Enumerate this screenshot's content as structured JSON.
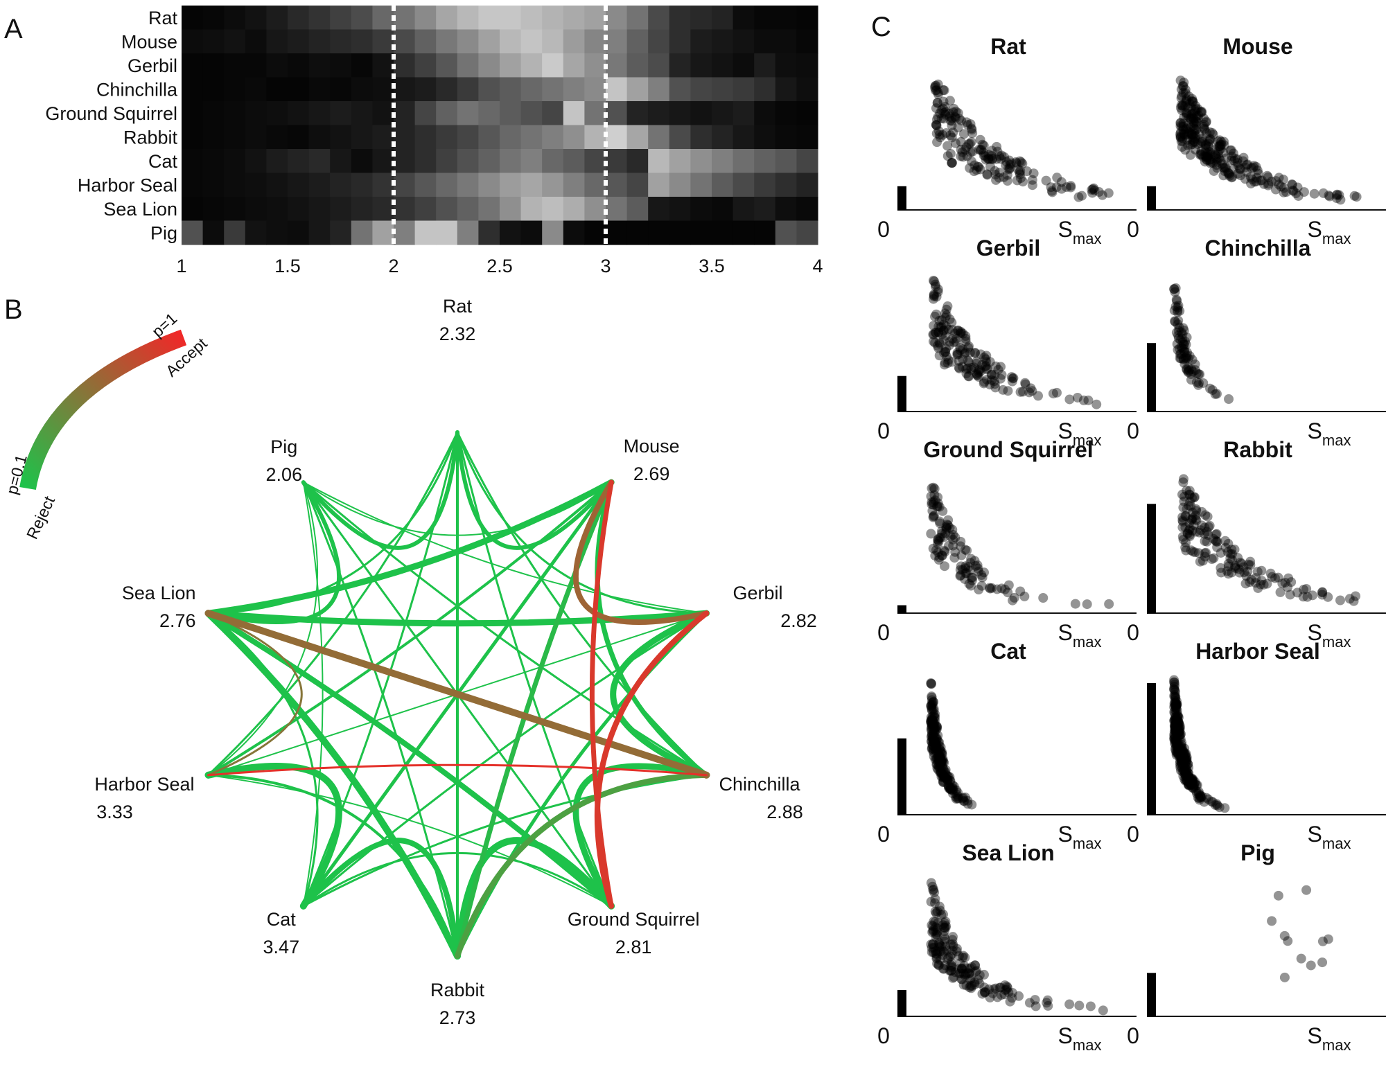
{
  "panels": {
    "a": "A",
    "b": "B",
    "c": "C"
  },
  "chart_data": [
    {
      "id": "heatmap",
      "type": "heatmap",
      "rows": [
        "Rat",
        "Mouse",
        "Gerbil",
        "Chinchilla",
        "Ground Squirrel",
        "Rabbit",
        "Cat",
        "Harbor Seal",
        "Sea Lion",
        "Pig"
      ],
      "x_ticks": [
        "1",
        "1.5",
        "2",
        "2.5",
        "3",
        "3.5",
        "4"
      ],
      "xlim": [
        1,
        4
      ],
      "dashed_lines_x": [
        2,
        3
      ],
      "bins_per_row": 30,
      "values": [
        [
          0.02,
          0.03,
          0.05,
          0.08,
          0.12,
          0.18,
          0.22,
          0.28,
          0.33,
          0.45,
          0.5,
          0.6,
          0.72,
          0.8,
          0.86,
          0.86,
          0.82,
          0.78,
          0.74,
          0.7,
          0.6,
          0.5,
          0.32,
          0.2,
          0.18,
          0.15,
          0.05,
          0.03,
          0.03,
          0.02
        ],
        [
          0.05,
          0.06,
          0.08,
          0.05,
          0.1,
          0.12,
          0.15,
          0.18,
          0.2,
          0.25,
          0.32,
          0.42,
          0.52,
          0.6,
          0.7,
          0.8,
          0.85,
          0.8,
          0.68,
          0.58,
          0.55,
          0.42,
          0.3,
          0.2,
          0.12,
          0.1,
          0.08,
          0.05,
          0.05,
          0.03
        ],
        [
          0.02,
          0.02,
          0.03,
          0.03,
          0.05,
          0.04,
          0.06,
          0.05,
          0.03,
          0.08,
          0.2,
          0.28,
          0.38,
          0.5,
          0.6,
          0.7,
          0.78,
          0.88,
          0.72,
          0.62,
          0.52,
          0.4,
          0.33,
          0.15,
          0.1,
          0.08,
          0.05,
          0.12,
          0.06,
          0.05
        ],
        [
          0.02,
          0.02,
          0.03,
          0.04,
          0.02,
          0.02,
          0.04,
          0.03,
          0.05,
          0.06,
          0.1,
          0.12,
          0.18,
          0.25,
          0.35,
          0.4,
          0.45,
          0.5,
          0.55,
          0.6,
          0.85,
          0.7,
          0.55,
          0.35,
          0.3,
          0.28,
          0.25,
          0.2,
          0.1,
          0.06
        ],
        [
          0.02,
          0.03,
          0.04,
          0.05,
          0.06,
          0.08,
          0.1,
          0.12,
          0.1,
          0.08,
          0.15,
          0.3,
          0.42,
          0.5,
          0.45,
          0.4,
          0.35,
          0.3,
          0.85,
          0.5,
          0.35,
          0.15,
          0.12,
          0.1,
          0.08,
          0.1,
          0.12,
          0.05,
          0.03,
          0.02
        ],
        [
          0.02,
          0.03,
          0.04,
          0.05,
          0.04,
          0.03,
          0.06,
          0.08,
          0.1,
          0.12,
          0.15,
          0.2,
          0.25,
          0.3,
          0.38,
          0.45,
          0.5,
          0.55,
          0.62,
          0.78,
          0.9,
          0.72,
          0.5,
          0.32,
          0.2,
          0.15,
          0.1,
          0.06,
          0.04,
          0.03
        ],
        [
          0.03,
          0.04,
          0.05,
          0.08,
          0.12,
          0.15,
          0.18,
          0.1,
          0.05,
          0.1,
          0.15,
          0.2,
          0.28,
          0.35,
          0.42,
          0.5,
          0.55,
          0.45,
          0.4,
          0.3,
          0.25,
          0.18,
          0.8,
          0.7,
          0.62,
          0.55,
          0.48,
          0.42,
          0.38,
          0.3
        ],
        [
          0.03,
          0.04,
          0.05,
          0.06,
          0.08,
          0.1,
          0.12,
          0.15,
          0.18,
          0.22,
          0.3,
          0.38,
          0.45,
          0.52,
          0.6,
          0.68,
          0.72,
          0.65,
          0.55,
          0.45,
          0.38,
          0.3,
          0.7,
          0.6,
          0.5,
          0.4,
          0.32,
          0.25,
          0.2,
          0.15
        ],
        [
          0.02,
          0.03,
          0.04,
          0.05,
          0.06,
          0.08,
          0.1,
          0.12,
          0.15,
          0.18,
          0.22,
          0.28,
          0.35,
          0.42,
          0.5,
          0.62,
          0.78,
          0.82,
          0.75,
          0.62,
          0.5,
          0.4,
          0.1,
          0.08,
          0.05,
          0.04,
          0.1,
          0.12,
          0.06,
          0.04
        ],
        [
          0.35,
          0.05,
          0.25,
          0.08,
          0.06,
          0.05,
          0.1,
          0.15,
          0.5,
          0.7,
          0.55,
          0.85,
          0.85,
          0.55,
          0.2,
          0.08,
          0.05,
          0.6,
          0.05,
          0.02,
          0.02,
          0.02,
          0.02,
          0.02,
          0.02,
          0.02,
          0.02,
          0.02,
          0.35,
          0.3
        ]
      ]
    },
    {
      "id": "network",
      "type": "network",
      "nodes": [
        {
          "name": "Rat",
          "value": "2.32"
        },
        {
          "name": "Mouse",
          "value": "2.69"
        },
        {
          "name": "Gerbil",
          "value": "2.82"
        },
        {
          "name": "Chinchilla",
          "value": "2.88"
        },
        {
          "name": "Ground Squirrel",
          "value": "2.81"
        },
        {
          "name": "Rabbit",
          "value": "2.73"
        },
        {
          "name": "Cat",
          "value": "3.47"
        },
        {
          "name": "Harbor Seal",
          "value": "3.33"
        },
        {
          "name": "Sea Lion",
          "value": "2.76"
        },
        {
          "name": "Pig",
          "value": "2.06"
        }
      ],
      "legend": {
        "high": "p=1",
        "low": "p=0.1",
        "accept": "Accept",
        "reject": "Reject",
        "colors": {
          "reject": "#1ec24a",
          "accept": "#f02828"
        }
      },
      "edges": [
        {
          "a": "Rat",
          "b": "Mouse",
          "p": 0.1,
          "w": 6
        },
        {
          "a": "Rat",
          "b": "Gerbil",
          "p": 0.1,
          "w": 3
        },
        {
          "a": "Rat",
          "b": "Chinchilla",
          "p": 0.1,
          "w": 3
        },
        {
          "a": "Rat",
          "b": "Ground Squirrel",
          "p": 0.1,
          "w": 3
        },
        {
          "a": "Rat",
          "b": "Rabbit",
          "p": 0.1,
          "w": 4
        },
        {
          "a": "Rat",
          "b": "Cat",
          "p": 0.1,
          "w": 3
        },
        {
          "a": "Rat",
          "b": "Harbor Seal",
          "p": 0.1,
          "w": 3
        },
        {
          "a": "Rat",
          "b": "Sea Lion",
          "p": 0.1,
          "w": 3
        },
        {
          "a": "Rat",
          "b": "Pig",
          "p": 0.1,
          "w": 6
        },
        {
          "a": "Mouse",
          "b": "Gerbil",
          "p": 0.65,
          "w": 8
        },
        {
          "a": "Mouse",
          "b": "Chinchilla",
          "p": 0.1,
          "w": 7
        },
        {
          "a": "Mouse",
          "b": "Ground Squirrel",
          "p": 0.9,
          "w": 7
        },
        {
          "a": "Mouse",
          "b": "Rabbit",
          "p": 0.15,
          "w": 7
        },
        {
          "a": "Mouse",
          "b": "Cat",
          "p": 0.1,
          "w": 5
        },
        {
          "a": "Mouse",
          "b": "Harbor Seal",
          "p": 0.1,
          "w": 4
        },
        {
          "a": "Mouse",
          "b": "Sea Lion",
          "p": 0.1,
          "w": 9
        },
        {
          "a": "Mouse",
          "b": "Pig",
          "p": 0.1,
          "w": 2
        },
        {
          "a": "Gerbil",
          "b": "Chinchilla",
          "p": 0.1,
          "w": 9
        },
        {
          "a": "Gerbil",
          "b": "Ground Squirrel",
          "p": 0.9,
          "w": 8
        },
        {
          "a": "Gerbil",
          "b": "Rabbit",
          "p": 0.1,
          "w": 5
        },
        {
          "a": "Gerbil",
          "b": "Cat",
          "p": 0.1,
          "w": 3
        },
        {
          "a": "Gerbil",
          "b": "Harbor Seal",
          "p": 0.1,
          "w": 2
        },
        {
          "a": "Gerbil",
          "b": "Sea Lion",
          "p": 0.1,
          "w": 9
        },
        {
          "a": "Gerbil",
          "b": "Pig",
          "p": 0.1,
          "w": 2
        },
        {
          "a": "Chinchilla",
          "b": "Ground Squirrel",
          "p": 0.1,
          "w": 9
        },
        {
          "a": "Chinchilla",
          "b": "Rabbit",
          "p": 0.3,
          "w": 8
        },
        {
          "a": "Chinchilla",
          "b": "Cat",
          "p": 0.1,
          "w": 3
        },
        {
          "a": "Chinchilla",
          "b": "Harbor Seal",
          "p": 0.95,
          "w": 3
        },
        {
          "a": "Chinchilla",
          "b": "Sea Lion",
          "p": 0.6,
          "w": 10
        },
        {
          "a": "Chinchilla",
          "b": "Pig",
          "p": 0.1,
          "w": 3
        },
        {
          "a": "Ground Squirrel",
          "b": "Rabbit",
          "p": 0.1,
          "w": 10
        },
        {
          "a": "Ground Squirrel",
          "b": "Cat",
          "p": 0.1,
          "w": 3
        },
        {
          "a": "Ground Squirrel",
          "b": "Harbor Seal",
          "p": 0.1,
          "w": 2
        },
        {
          "a": "Ground Squirrel",
          "b": "Sea Lion",
          "p": 0.1,
          "w": 8
        },
        {
          "a": "Ground Squirrel",
          "b": "Pig",
          "p": 0.1,
          "w": 3
        },
        {
          "a": "Rabbit",
          "b": "Cat",
          "p": 0.1,
          "w": 8
        },
        {
          "a": "Rabbit",
          "b": "Harbor Seal",
          "p": 0.1,
          "w": 4
        },
        {
          "a": "Rabbit",
          "b": "Sea Lion",
          "p": 0.1,
          "w": 10
        },
        {
          "a": "Rabbit",
          "b": "Pig",
          "p": 0.1,
          "w": 3
        },
        {
          "a": "Cat",
          "b": "Harbor Seal",
          "p": 0.1,
          "w": 10
        },
        {
          "a": "Cat",
          "b": "Sea Lion",
          "p": 0.1,
          "w": 3
        },
        {
          "a": "Cat",
          "b": "Pig",
          "p": 0.1,
          "w": 2
        },
        {
          "a": "Harbor Seal",
          "b": "Sea Lion",
          "p": 0.55,
          "w": 3
        },
        {
          "a": "Harbor Seal",
          "b": "Pig",
          "p": 0.1,
          "w": 2
        },
        {
          "a": "Sea Lion",
          "b": "Pig",
          "p": 0.1,
          "w": 6
        }
      ]
    },
    {
      "id": "scatter-grid",
      "type": "scatter",
      "x_start_label": "0",
      "x_end_label": "S",
      "x_end_sub": "max",
      "panels": [
        {
          "title": "Rat",
          "bar": 0.18,
          "seed": 11,
          "n": 170,
          "peak": 0.08,
          "decay": 0.28,
          "spread": 0.6
        },
        {
          "title": "Mouse",
          "bar": 0.18,
          "seed": 23,
          "n": 260,
          "peak": 0.06,
          "decay": 0.22,
          "spread": 0.55
        },
        {
          "title": "Gerbil",
          "bar": 0.27,
          "seed": 37,
          "n": 160,
          "peak": 0.07,
          "decay": 0.2,
          "spread": 0.6
        },
        {
          "title": "Chinchilla",
          "bar": 0.52,
          "seed": 41,
          "n": 80,
          "peak": 0.03,
          "decay": 0.07,
          "spread": 0.5
        },
        {
          "title": "Ground Squirrel",
          "bar": 0.06,
          "seed": 53,
          "n": 110,
          "peak": 0.06,
          "decay": 0.16,
          "spread": 0.6
        },
        {
          "title": "Rabbit",
          "bar": 0.83,
          "seed": 67,
          "n": 150,
          "peak": 0.07,
          "decay": 0.25,
          "spread": 0.55
        },
        {
          "title": "Cat",
          "bar": 0.58,
          "seed": 71,
          "n": 200,
          "peak": 0.06,
          "decay": 0.05,
          "spread": 0.5
        },
        {
          "title": "Harbor Seal",
          "bar": 1.0,
          "seed": 83,
          "n": 260,
          "peak": 0.03,
          "decay": 0.05,
          "spread": 0.5
        },
        {
          "title": "Sea Lion",
          "bar": 0.2,
          "seed": 97,
          "n": 170,
          "peak": 0.06,
          "decay": 0.16,
          "spread": 0.6
        },
        {
          "title": "Pig",
          "bar": 0.33,
          "seed": 101,
          "n": 11,
          "peak": 0.48,
          "decay": 0.0,
          "spread": 0.0
        }
      ]
    }
  ]
}
